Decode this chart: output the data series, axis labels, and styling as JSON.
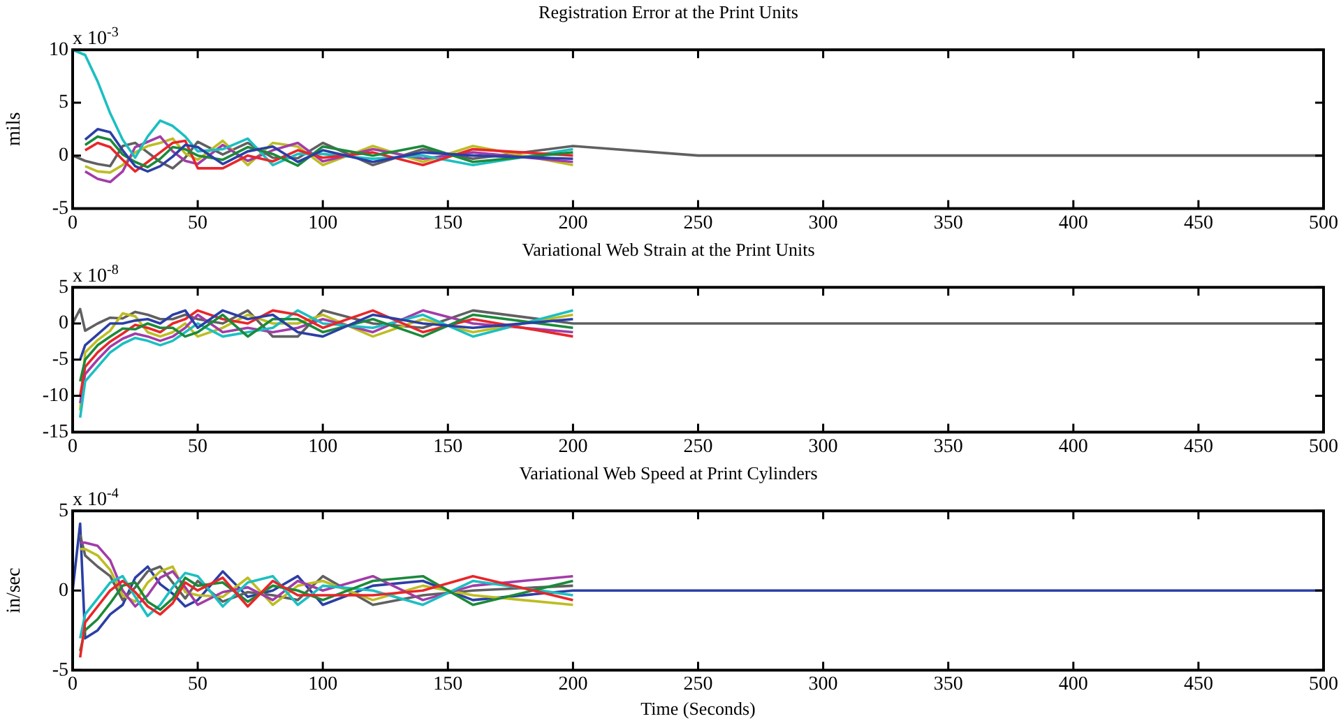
{
  "chart_data": [
    {
      "type": "line",
      "title": "Registration Error at the Print Units",
      "ylabel": "mils",
      "annotations": [
        "x 10$^{-3}$"
      ],
      "marker": "none",
      "xlim": [
        0,
        500
      ],
      "xticks": [
        0,
        50,
        100,
        150,
        200,
        250,
        300,
        350,
        400,
        450,
        500
      ],
      "ylim": [
        -5,
        10
      ],
      "yticks": [
        -5,
        0,
        5,
        10
      ],
      "x": [
        0,
        5,
        10,
        15,
        20,
        25,
        30,
        35,
        40,
        45,
        50,
        60,
        70,
        80,
        90,
        100,
        120,
        140,
        160,
        200,
        250,
        300,
        400,
        500
      ],
      "series": [
        {
          "color": "#2b3fa5",
          "values": [
            null,
            1.5,
            2.5,
            2.2,
            0.5,
            -1,
            -1.5,
            -1,
            -0.1,
            1,
            0.8,
            -0.8,
            0.4,
            0.85,
            -0.6,
            0.5,
            -0.6,
            0.3,
            0,
            -0.3,
            null,
            null,
            null,
            null
          ]
        },
        {
          "color": "#1a8a3a",
          "values": [
            null,
            1,
            1.8,
            1.5,
            0.1,
            -0.6,
            -1.1,
            -0.3,
            0.8,
            0.6,
            0,
            -0.4,
            0.8,
            0.15,
            -0.95,
            0.85,
            0,
            0.9,
            -0.6,
            0.3,
            null,
            null,
            null,
            null
          ]
        },
        {
          "color": "#e8262a",
          "values": [
            null,
            0.5,
            1.2,
            0.8,
            -0.4,
            -1.5,
            -0.6,
            0.3,
            1.2,
            1.4,
            -1.2,
            -1.2,
            0,
            -0.55,
            0.5,
            -0.2,
            0.3,
            -0.9,
            0.6,
            0,
            null,
            null,
            null,
            null
          ]
        },
        {
          "color": "#1bbfc1",
          "values": [
            10,
            9.5,
            7,
            4,
            1.5,
            -0.2,
            1.8,
            3.3,
            2.8,
            1.8,
            0.4,
            0.6,
            1.6,
            -0.9,
            0.15,
            0.15,
            -0.3,
            0,
            -0.9,
            0.6,
            null,
            null,
            null,
            null
          ]
        },
        {
          "color": "#a23ca8",
          "values": [
            null,
            -1.5,
            -2.2,
            -2.5,
            -1.5,
            0.8,
            1.3,
            1.8,
            0.4,
            -0.5,
            -0.8,
            1,
            -0.5,
            0.5,
            1.2,
            -0.55,
            0.6,
            -0.3,
            0.3,
            -0.6,
            null,
            null,
            null,
            null
          ]
        },
        {
          "color": "#bdbd22",
          "values": [
            null,
            -1,
            -1.5,
            -1.6,
            -0.9,
            0.3,
            0.9,
            1.2,
            1.6,
            0.2,
            -0.4,
            1.4,
            -0.9,
            1.2,
            0.85,
            -0.9,
            0.9,
            -0.6,
            0.9,
            -0.9,
            null,
            null,
            null,
            null
          ]
        },
        {
          "color": "#606060",
          "values": [
            0,
            -0.5,
            -0.8,
            -1,
            0.9,
            1.2,
            0.3,
            -0.6,
            -1.2,
            -0.2,
            1.3,
            0.1,
            1.2,
            -0.2,
            -0.25,
            1.2,
            -0.9,
            0.6,
            -0.3,
            0.9,
            0,
            0,
            0,
            0
          ]
        }
      ]
    },
    {
      "type": "line",
      "title": "Variational Web Strain at the Print Units",
      "annotations": [
        "x 10$^{-8}$"
      ],
      "marker": "none",
      "xlim": [
        0,
        500
      ],
      "xticks": [
        0,
        50,
        100,
        150,
        200,
        250,
        300,
        350,
        400,
        450,
        500
      ],
      "ylim": [
        -15,
        5
      ],
      "yticks": [
        -15,
        -10,
        -5,
        0,
        5
      ],
      "x": [
        0,
        3,
        5,
        10,
        15,
        20,
        25,
        30,
        35,
        40,
        45,
        50,
        60,
        70,
        80,
        90,
        100,
        120,
        140,
        160,
        200,
        250,
        300,
        400,
        500
      ],
      "series": [
        {
          "color": "#2b3fa5",
          "values": [
            null,
            -5,
            -3,
            -1.5,
            0,
            0,
            0.4,
            0.6,
            0,
            1.2,
            1.8,
            -0.6,
            1.8,
            0.6,
            1.2,
            -1.2,
            -1.8,
            1.2,
            0,
            -0.6,
            0.6,
            null,
            null,
            null,
            null
          ]
        },
        {
          "color": "#1a8a3a",
          "values": [
            null,
            -8,
            -5,
            -3,
            -1.8,
            -0.7,
            -0.8,
            0,
            -0.6,
            -0.6,
            -1.8,
            -1.2,
            1.2,
            -1.8,
            0.6,
            0.6,
            -1.2,
            0.6,
            -1.8,
            1.2,
            -0.6,
            null,
            null,
            null,
            null
          ]
        },
        {
          "color": "#e8262a",
          "values": [
            null,
            -10,
            -6,
            -4,
            -2.5,
            -1.4,
            -0.2,
            -0.6,
            -1.2,
            0,
            0.6,
            1.8,
            0.6,
            0,
            1.8,
            1.2,
            -0.6,
            1.8,
            -1.2,
            0.6,
            -1.8,
            null,
            null,
            null,
            null
          ]
        },
        {
          "color": "#1bbfc1",
          "values": [
            null,
            -13,
            -8,
            -6,
            -4,
            -2.8,
            -2,
            -2.4,
            -3,
            -2.4,
            -1.2,
            0,
            -1.8,
            -1.2,
            -0.6,
            1.8,
            0,
            -0.6,
            1.2,
            -1.8,
            1.8,
            null,
            null,
            null,
            null
          ]
        },
        {
          "color": "#a23ca8",
          "values": [
            null,
            -11,
            -7,
            -5,
            -3.2,
            -2.1,
            -1.4,
            -1.8,
            -2.4,
            -1.8,
            -0.6,
            1.2,
            -1.2,
            -0.6,
            -1.2,
            -0.6,
            0.6,
            -1.2,
            1.8,
            0,
            -1.2,
            null,
            null,
            null,
            null
          ]
        },
        {
          "color": "#bdbd22",
          "values": [
            null,
            -12,
            -4,
            -2.3,
            -1,
            1.4,
            1,
            -1.2,
            -1.8,
            -1.2,
            0,
            -1.8,
            -0.6,
            1.2,
            0,
            0,
            1.2,
            -1.8,
            0.6,
            -1.2,
            1.2,
            null,
            null,
            null,
            null
          ]
        },
        {
          "color": "#606060",
          "values": [
            0,
            2,
            -1,
            0,
            0.8,
            0.7,
            1.6,
            1.2,
            0.6,
            0.6,
            1.2,
            0.6,
            0,
            1.8,
            -1.8,
            -1.8,
            1.8,
            0,
            -0.6,
            1.8,
            0,
            0,
            0,
            0,
            0
          ]
        }
      ]
    },
    {
      "type": "line",
      "title": "Variational Web Speed at Print Cylinders",
      "xlabel": "Time (Seconds)",
      "ylabel": "in/sec",
      "annotations": [
        "x 10$^{-4}$"
      ],
      "marker": "none",
      "xlim": [
        0,
        500
      ],
      "xticks": [
        0,
        50,
        100,
        150,
        200,
        250,
        300,
        350,
        400,
        450,
        500
      ],
      "ylim": [
        -5,
        5
      ],
      "yticks": [
        -5,
        0,
        5
      ],
      "x": [
        0,
        3,
        5,
        10,
        15,
        20,
        25,
        30,
        35,
        40,
        45,
        50,
        60,
        70,
        80,
        90,
        100,
        120,
        140,
        160,
        200,
        250,
        300,
        400,
        500
      ],
      "series": [
        {
          "color": "#e8262a",
          "values": [
            null,
            -4.2,
            -2,
            -1,
            0,
            0.6,
            -0.1,
            -1,
            -1.5,
            -0.8,
            0.5,
            0,
            0.8,
            -1,
            0.6,
            -0.3,
            -0.3,
            -0.3,
            0,
            0.9,
            -0.6,
            null,
            null,
            null,
            null
          ]
        },
        {
          "color": "#1a8a3a",
          "values": [
            null,
            -3.8,
            -2.5,
            -1.8,
            -0.8,
            0.3,
            0.5,
            -0.7,
            -1.2,
            -0.5,
            0.8,
            0.3,
            0.5,
            -0.7,
            0.3,
            0,
            -0.6,
            0.6,
            0.9,
            -0.9,
            0.6,
            null,
            null,
            null,
            null
          ]
        },
        {
          "color": "#1bbfc1",
          "values": [
            null,
            -3,
            -1.5,
            -0.5,
            0.5,
            0.9,
            -0.4,
            -1.6,
            -0.9,
            0.2,
            1.1,
            0.9,
            -1,
            0.5,
            0.9,
            -0.9,
            0.3,
            0,
            -0.9,
            0.6,
            -0.3,
            null,
            null,
            null,
            null
          ]
        },
        {
          "color": "#a23ca8",
          "values": [
            null,
            3,
            3,
            2.8,
            1.9,
            0,
            -1,
            -0.3,
            0.8,
            1.2,
            0.2,
            -0.9,
            -0.1,
            0.2,
            -0.6,
            0.6,
            0,
            0.9,
            -0.6,
            0.3,
            0.9,
            null,
            null,
            null,
            null
          ]
        },
        {
          "color": "#bdbd22",
          "values": [
            null,
            2.6,
            2.6,
            2.2,
            1.3,
            -0.3,
            -0.7,
            0.5,
            1.2,
            1.5,
            -0.1,
            -0.3,
            -0.4,
            0.8,
            -0.9,
            0.3,
            0.6,
            -0.6,
            0.3,
            -0.3,
            -0.9,
            null,
            null,
            null,
            null
          ]
        },
        {
          "color": "#606060",
          "values": [
            null,
            3.5,
            2.2,
            1.5,
            0.9,
            -0.6,
            0.2,
            1.2,
            1.5,
            0.5,
            -0.5,
            0.6,
            -0.7,
            -0.1,
            -0.3,
            -0.6,
            0.9,
            -0.9,
            -0.3,
            0,
            0.3,
            null,
            null,
            null,
            null
          ]
        },
        {
          "color": "#2b3fa5",
          "values": [
            0,
            4.2,
            -3,
            -2.5,
            -1.5,
            -0.9,
            0.8,
            1.5,
            0.4,
            -0.2,
            -1,
            -0.6,
            1.2,
            -0.4,
            0,
            0.9,
            -0.9,
            0.3,
            0.6,
            -0.6,
            0,
            0,
            0,
            0,
            0
          ]
        }
      ]
    }
  ]
}
